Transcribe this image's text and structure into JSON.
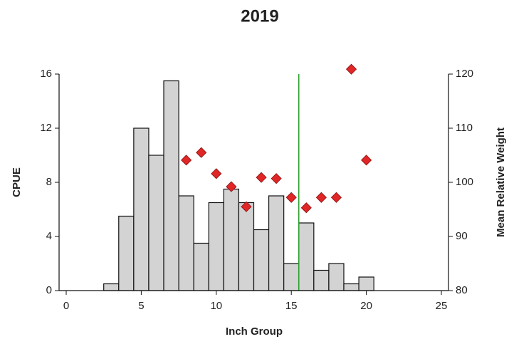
{
  "chart_data": {
    "type": "histogram",
    "title": "2019",
    "xlabel": "Inch Group",
    "ylabel": "CPUE",
    "y2label": "Mean Relative Weight",
    "bins": [
      2.5,
      3.5,
      4.5,
      5.5,
      6.5,
      7.5,
      8.5,
      9.5,
      10.5,
      11.5,
      12.5,
      13.5,
      14.5,
      15.5,
      16.5,
      17.5,
      18.5,
      19.5,
      20.5
    ],
    "values": [
      0.5,
      5.5,
      12,
      10,
      15.5,
      7,
      3.5,
      6.5,
      7.5,
      6.5,
      4.5,
      7,
      2,
      5,
      1.5,
      2,
      0.5,
      1
    ],
    "color": "#d3d3d3",
    "points": {
      "type": "scatter",
      "axis": "y2",
      "color": "#e02626",
      "x": [
        8,
        9,
        10,
        11,
        12,
        13,
        14,
        15,
        16,
        17,
        18,
        19,
        20
      ],
      "values": [
        104.1,
        105.5,
        101.6,
        99.2,
        95.5,
        100.9,
        100.7,
        97.2,
        95.3,
        97.2,
        97.2,
        120.9,
        104.1
      ]
    },
    "reference_line_x": 15.5,
    "reference_line_color": "#2a9d2a",
    "xlim": [
      0,
      25
    ],
    "xticks": [
      0,
      5,
      10,
      15,
      20,
      25
    ],
    "ylim": [
      0,
      16
    ],
    "yticks": [
      0,
      4,
      8,
      12,
      16
    ],
    "y2lim": [
      80,
      120
    ],
    "y2ticks": [
      80,
      90,
      100,
      110,
      120
    ]
  }
}
